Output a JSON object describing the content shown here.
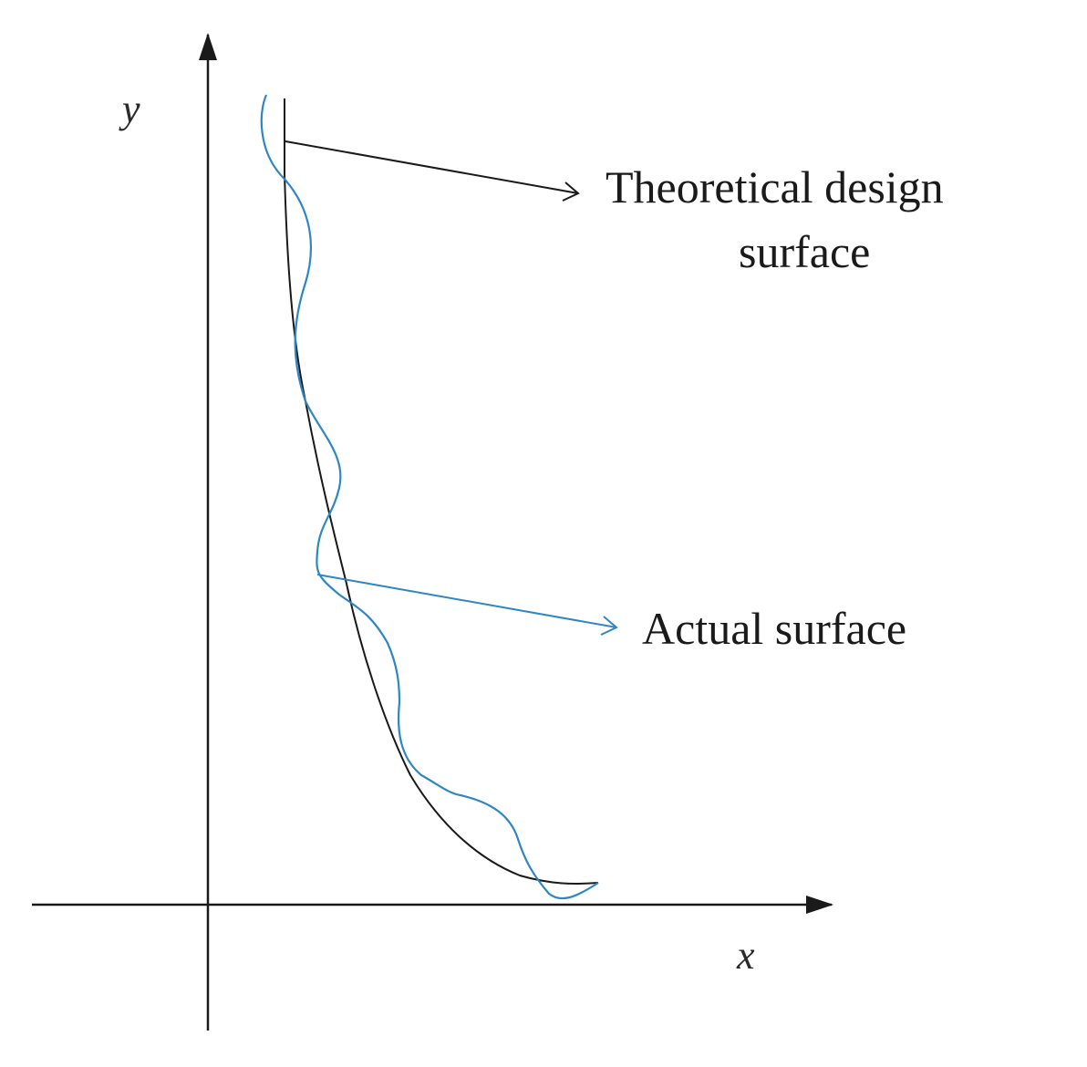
{
  "axes": {
    "x_label": "x",
    "y_label": "y",
    "color": "#1a1a1a"
  },
  "curves": {
    "theoretical": {
      "color": "#1a1a1a"
    },
    "actual": {
      "color": "#2f86c6"
    }
  },
  "labels": {
    "theoretical_line1": "Theoretical design",
    "theoretical_line2": "surface",
    "actual": "Actual surface"
  }
}
